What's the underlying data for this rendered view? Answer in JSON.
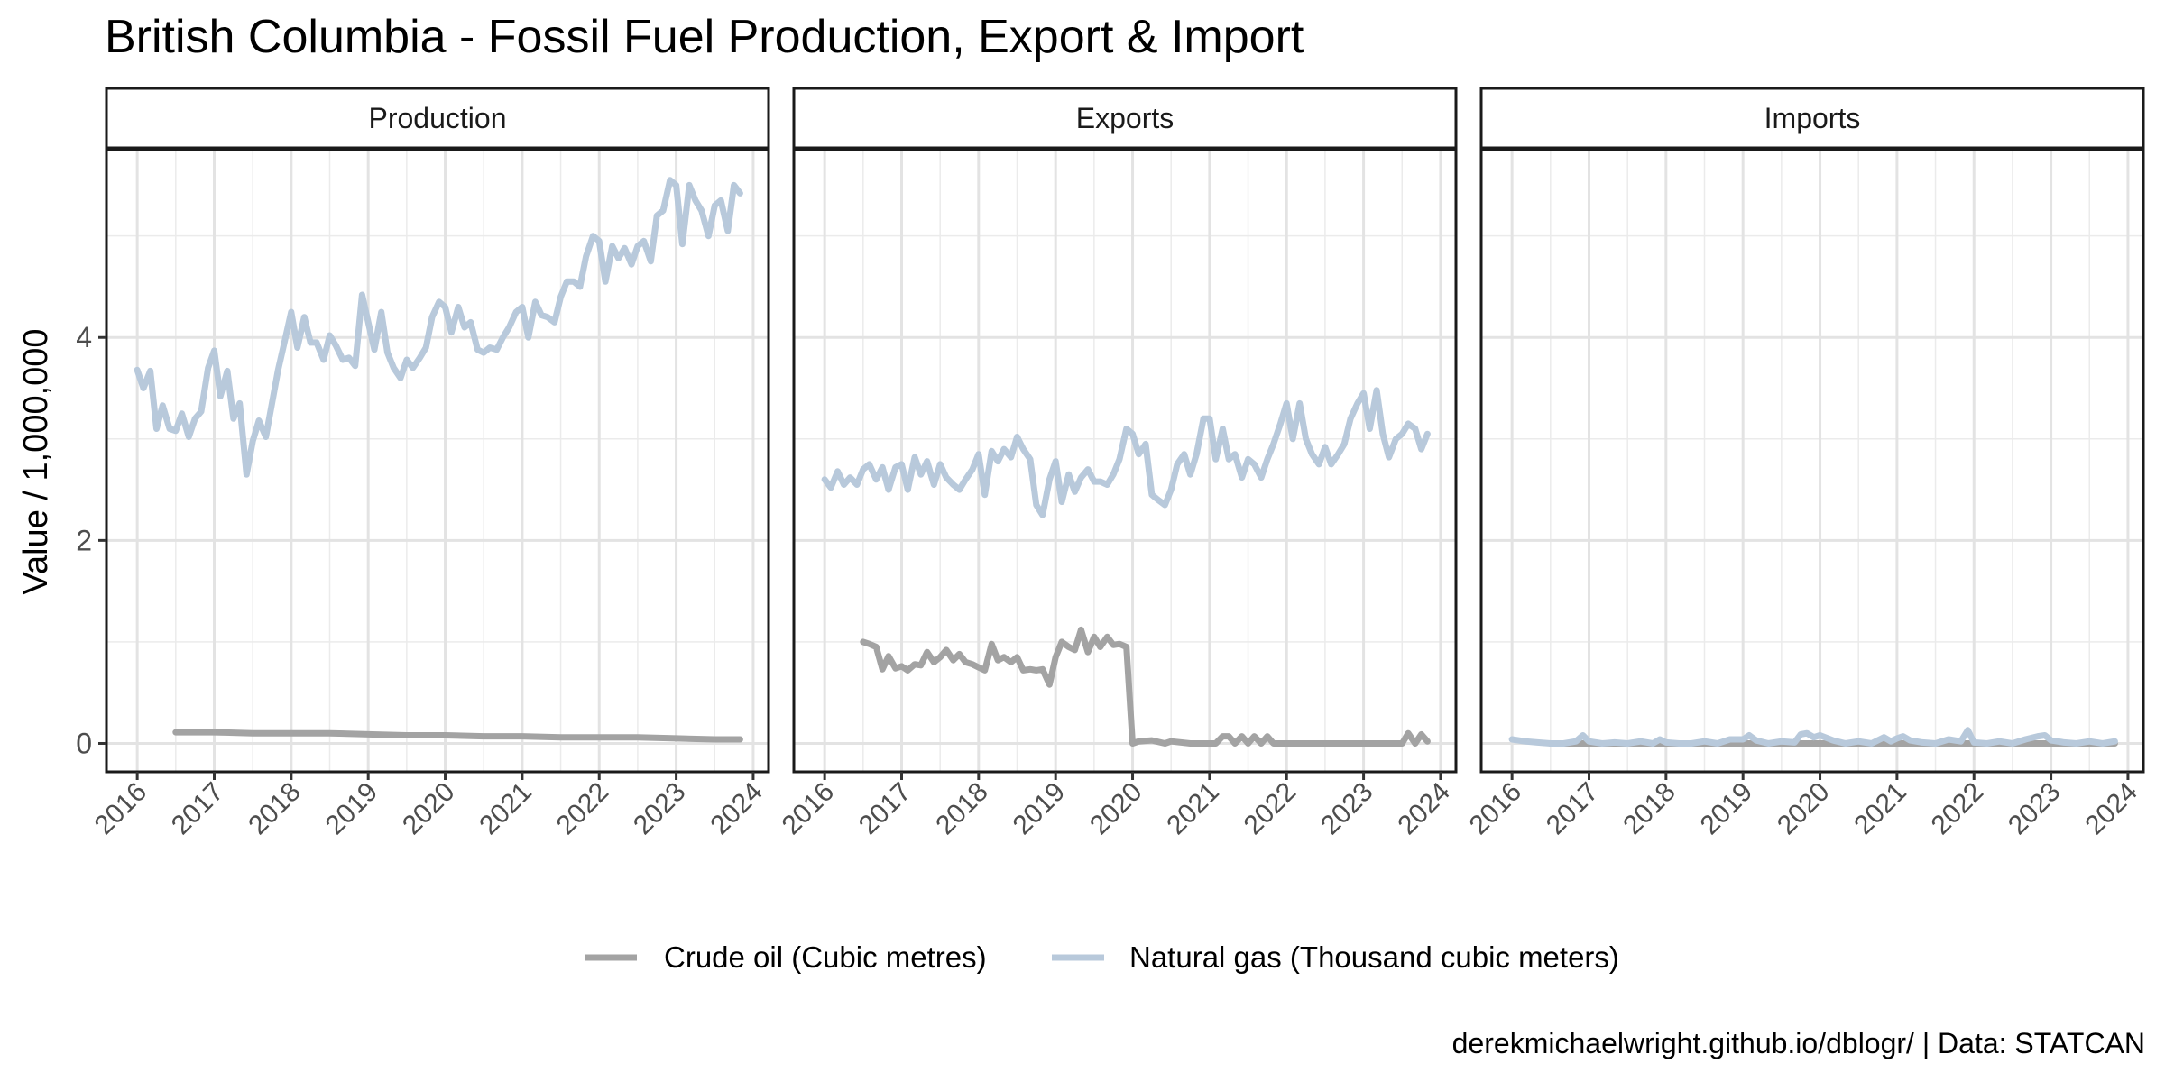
{
  "title": "British Columbia - Fossil Fuel Production, Export & Import",
  "caption": "derekmichaelwright.github.io/dblogr/ | Data: STATCAN",
  "chart_data": {
    "type": "line",
    "ylabel": "Value / 1,000,000",
    "xlabel": "",
    "y_ticks": [
      0,
      2,
      4
    ],
    "ylim": [
      -0.28,
      5.85
    ],
    "x_ticks": [
      2016,
      2017,
      2018,
      2019,
      2020,
      2021,
      2022,
      2023,
      2024
    ],
    "xlim": [
      2015.6,
      2024.2
    ],
    "grid": true,
    "legend_position": "bottom",
    "series_styles": [
      {
        "name": "Crude oil (Cubic metres)",
        "color": "#a3a3a3"
      },
      {
        "name": "Natural gas (Thousand cubic meters)",
        "color": "#b8c9db"
      }
    ],
    "panels": [
      {
        "label": "Production",
        "series": [
          {
            "name": "Crude oil (Cubic metres)",
            "color": "#a3a3a3",
            "x": [
              2016.5,
              2017.0,
              2017.5,
              2018.0,
              2018.5,
              2019.0,
              2019.5,
              2020.0,
              2020.5,
              2021.0,
              2021.5,
              2022.0,
              2022.5,
              2023.0,
              2023.5,
              2023.83
            ],
            "y": [
              0.11,
              0.11,
              0.1,
              0.1,
              0.1,
              0.09,
              0.08,
              0.08,
              0.07,
              0.07,
              0.06,
              0.06,
              0.06,
              0.05,
              0.04,
              0.04
            ]
          },
          {
            "name": "Natural gas (Thousand cubic meters)",
            "color": "#b8c9db",
            "x": [
              2016.0,
              2016.08,
              2016.17,
              2016.25,
              2016.33,
              2016.42,
              2016.5,
              2016.58,
              2016.67,
              2016.75,
              2016.83,
              2016.92,
              2017.0,
              2017.08,
              2017.17,
              2017.25,
              2017.33,
              2017.42,
              2017.5,
              2017.58,
              2017.67,
              2017.75,
              2017.83,
              2017.92,
              2018.0,
              2018.08,
              2018.17,
              2018.25,
              2018.33,
              2018.42,
              2018.5,
              2018.58,
              2018.67,
              2018.75,
              2018.83,
              2018.92,
              2019.0,
              2019.08,
              2019.17,
              2019.25,
              2019.33,
              2019.42,
              2019.5,
              2019.58,
              2019.67,
              2019.75,
              2019.83,
              2019.92,
              2020.0,
              2020.08,
              2020.17,
              2020.25,
              2020.33,
              2020.42,
              2020.5,
              2020.58,
              2020.67,
              2020.75,
              2020.83,
              2020.92,
              2021.0,
              2021.08,
              2021.17,
              2021.25,
              2021.33,
              2021.42,
              2021.5,
              2021.58,
              2021.67,
              2021.75,
              2021.83,
              2021.92,
              2022.0,
              2022.08,
              2022.17,
              2022.25,
              2022.33,
              2022.42,
              2022.5,
              2022.58,
              2022.67,
              2022.75,
              2022.83,
              2022.92,
              2023.0,
              2023.08,
              2023.17,
              2023.25,
              2023.33,
              2023.42,
              2023.5,
              2023.58,
              2023.67,
              2023.75,
              2023.83
            ],
            "y": [
              3.68,
              3.5,
              3.67,
              3.1,
              3.33,
              3.1,
              3.08,
              3.25,
              3.02,
              3.2,
              3.27,
              3.7,
              3.87,
              3.42,
              3.67,
              3.2,
              3.35,
              2.65,
              2.98,
              3.18,
              3.02,
              3.35,
              3.68,
              3.98,
              4.25,
              3.9,
              4.2,
              3.95,
              3.95,
              3.78,
              4.02,
              3.92,
              3.78,
              3.8,
              3.72,
              4.42,
              4.15,
              3.88,
              4.25,
              3.85,
              3.7,
              3.6,
              3.78,
              3.7,
              3.8,
              3.9,
              4.2,
              4.35,
              4.3,
              4.05,
              4.3,
              4.1,
              4.15,
              3.88,
              3.85,
              3.9,
              3.88,
              4.0,
              4.1,
              4.25,
              4.3,
              4.0,
              4.35,
              4.22,
              4.2,
              4.15,
              4.4,
              4.55,
              4.55,
              4.5,
              4.8,
              5.0,
              4.95,
              4.55,
              4.9,
              4.78,
              4.88,
              4.72,
              4.9,
              4.95,
              4.75,
              5.2,
              5.25,
              5.55,
              5.5,
              4.92,
              5.5,
              5.35,
              5.25,
              5.0,
              5.3,
              5.35,
              5.05,
              5.5,
              5.42
            ]
          }
        ]
      },
      {
        "label": "Exports",
        "series": [
          {
            "name": "Crude oil (Cubic metres)",
            "color": "#a3a3a3",
            "x": [
              2016.5,
              2016.58,
              2016.67,
              2016.75,
              2016.83,
              2016.92,
              2017.0,
              2017.08,
              2017.17,
              2017.25,
              2017.33,
              2017.42,
              2017.5,
              2017.58,
              2017.67,
              2017.75,
              2017.83,
              2017.92,
              2018.0,
              2018.08,
              2018.17,
              2018.25,
              2018.33,
              2018.42,
              2018.5,
              2018.58,
              2018.67,
              2018.75,
              2018.83,
              2018.92,
              2019.0,
              2019.08,
              2019.17,
              2019.25,
              2019.33,
              2019.42,
              2019.5,
              2019.58,
              2019.67,
              2019.75,
              2019.83,
              2019.92,
              2020.0,
              2020.08,
              2020.25,
              2020.42,
              2020.5,
              2020.75,
              2021.0,
              2021.08,
              2021.17,
              2021.25,
              2021.33,
              2021.42,
              2021.5,
              2021.58,
              2021.67,
              2021.75,
              2021.83,
              2022.0,
              2022.5,
              2023.0,
              2023.5,
              2023.58,
              2023.67,
              2023.75,
              2023.83
            ],
            "y": [
              1.0,
              0.98,
              0.95,
              0.73,
              0.86,
              0.74,
              0.76,
              0.72,
              0.78,
              0.77,
              0.9,
              0.8,
              0.85,
              0.92,
              0.82,
              0.88,
              0.8,
              0.78,
              0.75,
              0.72,
              0.98,
              0.82,
              0.85,
              0.8,
              0.85,
              0.72,
              0.73,
              0.72,
              0.73,
              0.58,
              0.85,
              1.0,
              0.95,
              0.92,
              1.12,
              0.9,
              1.05,
              0.95,
              1.05,
              0.97,
              0.98,
              0.95,
              0.0,
              0.02,
              0.03,
              0.0,
              0.02,
              0.0,
              0.0,
              0.0,
              0.07,
              0.07,
              0.0,
              0.07,
              0.0,
              0.07,
              0.0,
              0.07,
              0.0,
              0.0,
              0.0,
              0.0,
              0.0,
              0.1,
              0.0,
              0.09,
              0.02
            ]
          },
          {
            "name": "Natural gas (Thousand cubic meters)",
            "color": "#b8c9db",
            "x": [
              2016.0,
              2016.08,
              2016.17,
              2016.25,
              2016.33,
              2016.42,
              2016.5,
              2016.58,
              2016.67,
              2016.75,
              2016.83,
              2016.92,
              2017.0,
              2017.08,
              2017.17,
              2017.25,
              2017.33,
              2017.42,
              2017.5,
              2017.58,
              2017.67,
              2017.75,
              2017.83,
              2017.92,
              2018.0,
              2018.08,
              2018.17,
              2018.25,
              2018.33,
              2018.42,
              2018.5,
              2018.58,
              2018.67,
              2018.75,
              2018.83,
              2018.92,
              2019.0,
              2019.08,
              2019.17,
              2019.25,
              2019.33,
              2019.42,
              2019.5,
              2019.58,
              2019.67,
              2019.75,
              2019.83,
              2019.92,
              2020.0,
              2020.08,
              2020.17,
              2020.25,
              2020.33,
              2020.42,
              2020.5,
              2020.58,
              2020.67,
              2020.75,
              2020.83,
              2020.92,
              2021.0,
              2021.08,
              2021.17,
              2021.25,
              2021.33,
              2021.42,
              2021.5,
              2021.58,
              2021.67,
              2021.75,
              2021.83,
              2021.92,
              2022.0,
              2022.08,
              2022.17,
              2022.25,
              2022.33,
              2022.42,
              2022.5,
              2022.58,
              2022.67,
              2022.75,
              2022.83,
              2022.92,
              2023.0,
              2023.08,
              2023.17,
              2023.25,
              2023.33,
              2023.42,
              2023.5,
              2023.58,
              2023.67,
              2023.75,
              2023.83
            ],
            "y": [
              2.6,
              2.52,
              2.68,
              2.55,
              2.62,
              2.55,
              2.7,
              2.75,
              2.6,
              2.72,
              2.5,
              2.72,
              2.75,
              2.5,
              2.82,
              2.65,
              2.78,
              2.55,
              2.75,
              2.62,
              2.55,
              2.5,
              2.6,
              2.7,
              2.85,
              2.45,
              2.88,
              2.78,
              2.9,
              2.82,
              3.02,
              2.9,
              2.8,
              2.35,
              2.25,
              2.6,
              2.78,
              2.38,
              2.65,
              2.48,
              2.62,
              2.7,
              2.58,
              2.58,
              2.55,
              2.65,
              2.8,
              3.1,
              3.05,
              2.85,
              2.95,
              2.45,
              2.4,
              2.35,
              2.5,
              2.75,
              2.85,
              2.65,
              2.85,
              3.2,
              3.2,
              2.8,
              3.1,
              2.8,
              2.85,
              2.62,
              2.8,
              2.75,
              2.62,
              2.8,
              2.95,
              3.15,
              3.35,
              3.0,
              3.35,
              3.0,
              2.85,
              2.75,
              2.92,
              2.75,
              2.85,
              2.95,
              3.2,
              3.35,
              3.45,
              3.1,
              3.48,
              3.05,
              2.82,
              3.0,
              3.05,
              3.15,
              3.1,
              2.9,
              3.05
            ]
          }
        ]
      },
      {
        "label": "Imports",
        "series": [
          {
            "name": "Crude oil (Cubic metres)",
            "color": "#a3a3a3",
            "x": [
              2016.5,
              2017.0,
              2017.5,
              2018.0,
              2018.5,
              2019.0,
              2019.5,
              2020.0,
              2020.5,
              2021.0,
              2021.5,
              2022.0,
              2022.5,
              2023.0,
              2023.5,
              2023.83
            ],
            "y": [
              0.0,
              0.0,
              0.0,
              0.0,
              0.0,
              0.0,
              0.0,
              0.0,
              0.0,
              0.0,
              0.0,
              0.0,
              0.0,
              0.0,
              0.0,
              0.0
            ]
          },
          {
            "name": "Natural gas (Thousand cubic meters)",
            "color": "#b8c9db",
            "x": [
              2016.0,
              2016.17,
              2016.33,
              2016.5,
              2016.67,
              2016.83,
              2016.92,
              2017.0,
              2017.17,
              2017.33,
              2017.5,
              2017.67,
              2017.83,
              2017.92,
              2018.0,
              2018.17,
              2018.33,
              2018.5,
              2018.67,
              2018.83,
              2019.0,
              2019.08,
              2019.17,
              2019.33,
              2019.5,
              2019.67,
              2019.75,
              2019.83,
              2019.92,
              2020.0,
              2020.17,
              2020.33,
              2020.5,
              2020.67,
              2020.83,
              2020.92,
              2021.0,
              2021.08,
              2021.17,
              2021.33,
              2021.5,
              2021.67,
              2021.83,
              2021.92,
              2022.0,
              2022.17,
              2022.33,
              2022.5,
              2022.67,
              2022.83,
              2022.92,
              2023.0,
              2023.17,
              2023.33,
              2023.5,
              2023.67,
              2023.83
            ],
            "y": [
              0.04,
              0.02,
              0.01,
              0.0,
              0.0,
              0.02,
              0.08,
              0.02,
              0.0,
              0.01,
              0.0,
              0.02,
              0.0,
              0.04,
              0.01,
              0.0,
              0.0,
              0.02,
              0.0,
              0.04,
              0.04,
              0.08,
              0.03,
              0.0,
              0.02,
              0.01,
              0.09,
              0.1,
              0.06,
              0.08,
              0.03,
              0.0,
              0.02,
              0.0,
              0.06,
              0.02,
              0.05,
              0.07,
              0.03,
              0.01,
              0.0,
              0.04,
              0.02,
              0.13,
              0.01,
              0.0,
              0.02,
              0.0,
              0.04,
              0.07,
              0.08,
              0.03,
              0.01,
              0.0,
              0.02,
              0.0,
              0.02
            ]
          }
        ]
      }
    ]
  }
}
